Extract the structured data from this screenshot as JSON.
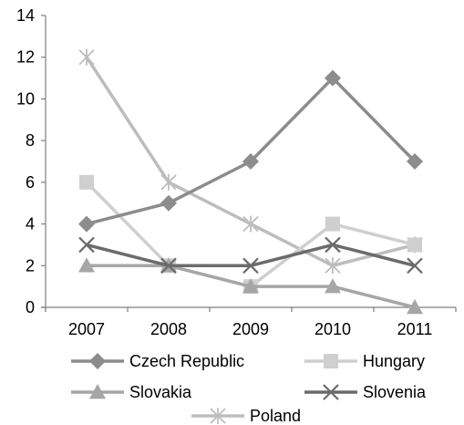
{
  "chart_data": {
    "type": "line",
    "title": "",
    "xlabel": "",
    "ylabel": "",
    "categories": [
      "2007",
      "2008",
      "2009",
      "2010",
      "2011"
    ],
    "ylim": [
      0,
      14
    ],
    "yticks": [
      0,
      2,
      4,
      6,
      8,
      10,
      12,
      14
    ],
    "grid": false,
    "legend": "bottom",
    "series": [
      {
        "name": "Czech Republic",
        "values": [
          4,
          5,
          7,
          11,
          7
        ],
        "color": "#8c8c8c",
        "marker": "diamond"
      },
      {
        "name": "Hungary",
        "values": [
          6,
          2,
          1,
          4,
          3
        ],
        "color": "#cfcfcf",
        "marker": "square"
      },
      {
        "name": "Slovakia",
        "values": [
          2,
          2,
          1,
          1,
          0
        ],
        "color": "#a6a6a6",
        "marker": "triangle"
      },
      {
        "name": "Slovenia",
        "values": [
          3,
          2,
          2,
          3,
          2
        ],
        "color": "#6b6b6b",
        "marker": "x"
      },
      {
        "name": "Poland",
        "values": [
          12,
          6,
          4,
          2,
          3
        ],
        "color": "#bdbdbd",
        "marker": "star"
      }
    ]
  }
}
